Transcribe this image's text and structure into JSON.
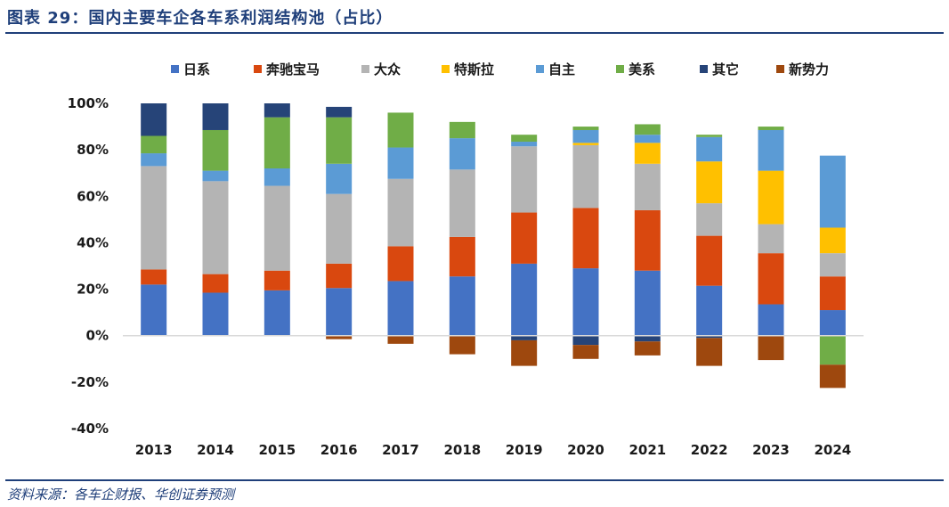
{
  "header": {
    "title": "图表 29：国内主要车企各车系利润结构池（占比）"
  },
  "footer": {
    "source": "资料来源：各车企财报、华创证券预测"
  },
  "colors": {
    "日系": "#4472c4",
    "奔驰宝马": "#d9480f",
    "大众": "#b4b4b4",
    "特斯拉": "#ffc000",
    "自主": "#5b9bd5",
    "美系": "#70ad47",
    "其它": "#264478",
    "新势力": "#9e480e",
    "axis": "#d9d9d9",
    "text": "#1a1a1a"
  },
  "chart_data": {
    "type": "bar",
    "stacked": true,
    "categories": [
      "2013",
      "2014",
      "2015",
      "2016",
      "2017",
      "2018",
      "2019",
      "2020",
      "2021",
      "2022",
      "2023",
      "2024"
    ],
    "series": [
      {
        "name": "日系",
        "values": [
          22,
          18.5,
          19.5,
          20.5,
          23.5,
          25.5,
          31,
          29,
          28,
          21.5,
          13.5,
          11
        ]
      },
      {
        "name": "奔驰宝马",
        "values": [
          6.5,
          8,
          8.5,
          10.5,
          15,
          17,
          22,
          26,
          26,
          21.5,
          22,
          14.5
        ]
      },
      {
        "name": "大众",
        "values": [
          44.5,
          40,
          36.5,
          30,
          29,
          29,
          28.5,
          27,
          20,
          14,
          12.5,
          10
        ]
      },
      {
        "name": "特斯拉",
        "values": [
          0,
          0,
          0,
          0,
          0,
          0,
          0,
          1,
          9,
          18,
          23,
          11
        ]
      },
      {
        "name": "自主",
        "values": [
          5.5,
          4.5,
          7.5,
          13,
          13.5,
          13.5,
          2,
          5.5,
          3.5,
          10.5,
          17.5,
          31
        ]
      },
      {
        "name": "美系",
        "values": [
          7.5,
          17.5,
          22,
          20,
          15,
          7,
          3,
          1.5,
          4.5,
          1,
          1.5,
          -12.5
        ]
      },
      {
        "name": "其它",
        "values": [
          14,
          11.5,
          6,
          4.5,
          0,
          0,
          -2,
          -4,
          -2.5,
          -1,
          0,
          0
        ]
      },
      {
        "name": "新势力",
        "values": [
          0,
          0,
          0,
          -1.5,
          -3.5,
          -8,
          -11,
          -6,
          -6,
          -12,
          -10.5,
          -10
        ]
      }
    ],
    "yticks": [
      "100%",
      "80%",
      "60%",
      "40%",
      "20%",
      "0%",
      "-20%",
      "-40%"
    ],
    "ylim": [
      -40,
      100
    ],
    "legend_position": "top",
    "grid": false
  }
}
